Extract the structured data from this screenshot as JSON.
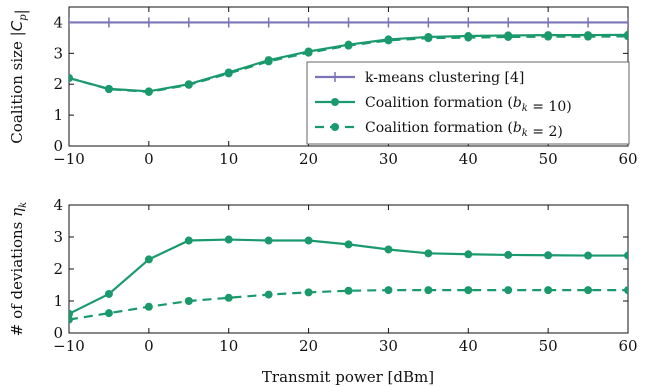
{
  "colors": {
    "kmeans": "#7b74b6",
    "coalition": "#1a9a6c",
    "axis": "#111111",
    "legend_border": "#666666"
  },
  "xlabel": "Transmit power [dBm]",
  "chart_data": [
    {
      "type": "line",
      "ylabel": "Coalition size |Cp|",
      "ylim": [
        0,
        4.5
      ],
      "xlim": [
        -10,
        60
      ],
      "xticks": [
        "−10",
        "0",
        "10",
        "20",
        "30",
        "40",
        "50",
        "60"
      ],
      "yticks": [
        "0",
        "1",
        "2",
        "3",
        "4"
      ],
      "legend_position": "bottom-right",
      "series": [
        {
          "name": "k-means clustering [4]",
          "marker": "plus",
          "style": "solid",
          "x": [
            -10,
            -5,
            0,
            5,
            10,
            15,
            20,
            25,
            30,
            35,
            40,
            45,
            50,
            55,
            60
          ],
          "values": [
            4,
            4,
            4,
            4,
            4,
            4,
            4,
            4,
            4,
            4,
            4,
            4,
            4,
            4,
            4
          ]
        },
        {
          "name": "Coalition formation (bk = 10)",
          "marker": "circle",
          "style": "solid",
          "x": [
            -10,
            -5,
            0,
            5,
            10,
            15,
            20,
            25,
            30,
            35,
            40,
            45,
            50,
            55,
            60
          ],
          "values": [
            2.2,
            1.85,
            1.77,
            2.0,
            2.38,
            2.78,
            3.06,
            3.28,
            3.45,
            3.53,
            3.56,
            3.58,
            3.59,
            3.59,
            3.6
          ]
        },
        {
          "name": "Coalition formation (bk = 2)",
          "marker": "circle",
          "style": "dashed",
          "x": [
            -10,
            -5,
            0,
            5,
            10,
            15,
            20,
            25,
            30,
            35,
            40,
            45,
            50,
            55,
            60
          ],
          "values": [
            2.2,
            1.84,
            1.75,
            1.98,
            2.35,
            2.74,
            3.02,
            3.25,
            3.42,
            3.49,
            3.51,
            3.53,
            3.54,
            3.54,
            3.55
          ]
        }
      ]
    },
    {
      "type": "line",
      "ylabel": "# of deviations ηk",
      "ylim": [
        0,
        4
      ],
      "xlim": [
        -10,
        60
      ],
      "xticks": [
        "−10",
        "0",
        "10",
        "20",
        "30",
        "40",
        "50",
        "60"
      ],
      "yticks": [
        "0",
        "1",
        "2",
        "3",
        "4"
      ],
      "series": [
        {
          "name": "Coalition formation (bk = 10)",
          "marker": "circle",
          "style": "solid",
          "x": [
            -10,
            -5,
            0,
            5,
            10,
            15,
            20,
            25,
            30,
            35,
            40,
            45,
            50,
            55,
            60
          ],
          "values": [
            0.6,
            1.22,
            2.3,
            2.89,
            2.92,
            2.89,
            2.89,
            2.77,
            2.61,
            2.49,
            2.46,
            2.44,
            2.43,
            2.42,
            2.42
          ]
        },
        {
          "name": "Coalition formation (bk = 2)",
          "marker": "circle",
          "style": "dashed",
          "x": [
            -10,
            -5,
            0,
            5,
            10,
            15,
            20,
            25,
            30,
            35,
            40,
            45,
            50,
            55,
            60
          ],
          "values": [
            0.42,
            0.62,
            0.82,
            1.0,
            1.1,
            1.2,
            1.27,
            1.32,
            1.34,
            1.34,
            1.34,
            1.34,
            1.34,
            1.34,
            1.34
          ]
        }
      ]
    }
  ]
}
